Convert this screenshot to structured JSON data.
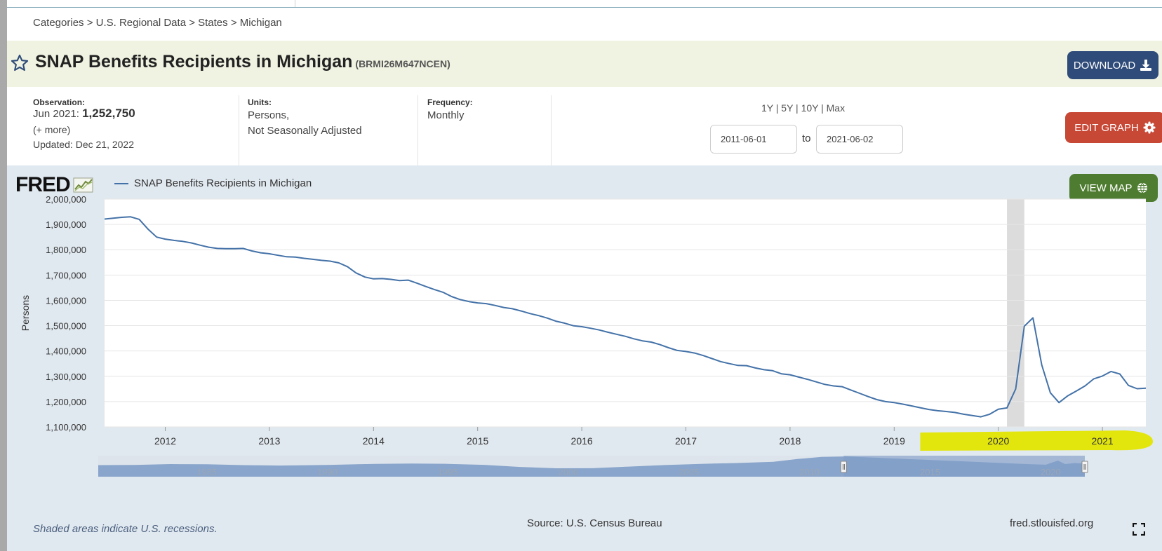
{
  "breadcrumb": "Categories > U.S. Regional Data > States > Michigan",
  "title": "SNAP Benefits Recipients in Michigan",
  "series_id": "(BRMI26M647NCEN)",
  "download_label": "DOWNLOAD",
  "observation": {
    "label": "Observation:",
    "date": "Jun 2021:",
    "value": "1,252,750",
    "more": "(+ more)",
    "updated": "Updated: Dec 21, 2022"
  },
  "units": {
    "label": "Units:",
    "line1": "Persons,",
    "line2": "Not Seasonally Adjusted"
  },
  "frequency": {
    "label": "Frequency:",
    "value": "Monthly"
  },
  "range_links": "1Y | 5Y | 10Y | Max",
  "date_from": "2011-06-01",
  "date_to": "2021-06-02",
  "to_label": "to",
  "edit_graph_label": "EDIT GRAPH",
  "view_map_label": "VIEW MAP",
  "logo_text": "FRED",
  "recession_note": "Shaded areas indicate U.S. recessions.",
  "source": "Source: U.S. Census Bureau",
  "url": "fred.stlouisfed.org",
  "colors": {
    "line": "#4472a8",
    "recession": "#dcdcdc",
    "highlight": "#e3e600",
    "download": "#2e4b79",
    "edit": "#c84836",
    "viewmap": "#4e7d31"
  },
  "icons": [
    "star-icon",
    "download-icon",
    "gear-icon",
    "fred-chart-icon",
    "globe-icon",
    "fullscreen-icon"
  ],
  "chart_data": {
    "type": "line",
    "ylabel": "Persons",
    "xlabel": "",
    "xlim": [
      2011.417,
      2021.417
    ],
    "ylim": [
      1100000,
      2000000
    ],
    "y_ticks": [
      1100000,
      1200000,
      1300000,
      1400000,
      1500000,
      1600000,
      1700000,
      1800000,
      1900000,
      2000000
    ],
    "y_tick_labels": [
      "1,100,000",
      "1,200,000",
      "1,300,000",
      "1,400,000",
      "1,500,000",
      "1,600,000",
      "1,700,000",
      "1,800,000",
      "1,900,000",
      "2,000,000"
    ],
    "x_ticks": [
      2012,
      2013,
      2014,
      2015,
      2016,
      2017,
      2018,
      2019,
      2020,
      2021
    ],
    "x_tick_labels": [
      "2012",
      "2013",
      "2014",
      "2015",
      "2016",
      "2017",
      "2018",
      "2019",
      "2020",
      "2021"
    ],
    "recession": [
      2020.083,
      2020.25
    ],
    "series": [
      {
        "name": "SNAP Benefits Recipients in Michigan",
        "points": [
          [
            2011.417,
            1921000
          ],
          [
            2011.583,
            1928000
          ],
          [
            2011.667,
            1930000
          ],
          [
            2011.75,
            1920000
          ],
          [
            2011.833,
            1882000
          ],
          [
            2011.917,
            1850000
          ],
          [
            2012.0,
            1842000
          ],
          [
            2012.083,
            1837000
          ],
          [
            2012.167,
            1833000
          ],
          [
            2012.25,
            1827000
          ],
          [
            2012.333,
            1818000
          ],
          [
            2012.417,
            1810000
          ],
          [
            2012.5,
            1805000
          ],
          [
            2012.583,
            1804000
          ],
          [
            2012.667,
            1804000
          ],
          [
            2012.75,
            1805000
          ],
          [
            2012.833,
            1795000
          ],
          [
            2012.917,
            1788000
          ],
          [
            2013.0,
            1784000
          ],
          [
            2013.083,
            1778000
          ],
          [
            2013.167,
            1772000
          ],
          [
            2013.25,
            1771000
          ],
          [
            2013.333,
            1766000
          ],
          [
            2013.417,
            1762000
          ],
          [
            2013.5,
            1758000
          ],
          [
            2013.583,
            1755000
          ],
          [
            2013.667,
            1748000
          ],
          [
            2013.75,
            1733000
          ],
          [
            2013.833,
            1708000
          ],
          [
            2013.917,
            1692000
          ],
          [
            2014.0,
            1685000
          ],
          [
            2014.083,
            1686000
          ],
          [
            2014.167,
            1683000
          ],
          [
            2014.25,
            1678000
          ],
          [
            2014.333,
            1680000
          ],
          [
            2014.417,
            1668000
          ],
          [
            2014.5,
            1655000
          ],
          [
            2014.583,
            1643000
          ],
          [
            2014.667,
            1632000
          ],
          [
            2014.75,
            1615000
          ],
          [
            2014.833,
            1603000
          ],
          [
            2014.917,
            1595000
          ],
          [
            2015.0,
            1590000
          ],
          [
            2015.083,
            1587000
          ],
          [
            2015.167,
            1580000
          ],
          [
            2015.25,
            1572000
          ],
          [
            2015.333,
            1567000
          ],
          [
            2015.417,
            1558000
          ],
          [
            2015.5,
            1548000
          ],
          [
            2015.583,
            1540000
          ],
          [
            2015.667,
            1530000
          ],
          [
            2015.75,
            1518000
          ],
          [
            2015.833,
            1510000
          ],
          [
            2015.917,
            1500000
          ],
          [
            2016.0,
            1496000
          ],
          [
            2016.083,
            1490000
          ],
          [
            2016.167,
            1483000
          ],
          [
            2016.25,
            1474000
          ],
          [
            2016.333,
            1466000
          ],
          [
            2016.417,
            1458000
          ],
          [
            2016.5,
            1448000
          ],
          [
            2016.583,
            1440000
          ],
          [
            2016.667,
            1435000
          ],
          [
            2016.75,
            1425000
          ],
          [
            2016.833,
            1413000
          ],
          [
            2016.917,
            1402000
          ],
          [
            2017.0,
            1398000
          ],
          [
            2017.083,
            1392000
          ],
          [
            2017.167,
            1382000
          ],
          [
            2017.25,
            1370000
          ],
          [
            2017.333,
            1358000
          ],
          [
            2017.417,
            1350000
          ],
          [
            2017.5,
            1343000
          ],
          [
            2017.583,
            1342000
          ],
          [
            2017.667,
            1333000
          ],
          [
            2017.75,
            1326000
          ],
          [
            2017.833,
            1322000
          ],
          [
            2017.917,
            1310000
          ],
          [
            2018.0,
            1306000
          ],
          [
            2018.083,
            1297000
          ],
          [
            2018.167,
            1288000
          ],
          [
            2018.25,
            1278000
          ],
          [
            2018.333,
            1268000
          ],
          [
            2018.417,
            1262000
          ],
          [
            2018.5,
            1259000
          ],
          [
            2018.583,
            1246000
          ],
          [
            2018.667,
            1233000
          ],
          [
            2018.75,
            1220000
          ],
          [
            2018.833,
            1208000
          ],
          [
            2018.917,
            1200000
          ],
          [
            2019.0,
            1196000
          ],
          [
            2019.083,
            1190000
          ],
          [
            2019.167,
            1183000
          ],
          [
            2019.25,
            1176000
          ],
          [
            2019.333,
            1169000
          ],
          [
            2019.417,
            1164000
          ],
          [
            2019.5,
            1161000
          ],
          [
            2019.583,
            1157000
          ],
          [
            2019.667,
            1150000
          ],
          [
            2019.75,
            1145000
          ],
          [
            2019.833,
            1140000
          ],
          [
            2019.917,
            1150000
          ],
          [
            2020.0,
            1170000
          ],
          [
            2020.083,
            1175000
          ],
          [
            2020.167,
            1250000
          ],
          [
            2020.25,
            1498000
          ],
          [
            2020.333,
            1531000
          ],
          [
            2020.417,
            1345000
          ],
          [
            2020.5,
            1235000
          ],
          [
            2020.583,
            1196000
          ],
          [
            2020.667,
            1223000
          ],
          [
            2020.75,
            1242000
          ],
          [
            2020.833,
            1262000
          ],
          [
            2020.917,
            1290000
          ],
          [
            2021.0,
            1301000
          ],
          [
            2021.083,
            1319000
          ],
          [
            2021.167,
            1309000
          ],
          [
            2021.25,
            1264000
          ],
          [
            2021.333,
            1251000
          ],
          [
            2021.417,
            1252750
          ]
        ]
      }
    ],
    "navigator": {
      "x_ticks": [
        1985,
        1990,
        1995,
        2000,
        2005,
        2010,
        2015,
        2020
      ],
      "x_tick_labels": [
        "1985",
        "1990",
        "1995",
        "2000",
        "2005",
        "2010",
        "2015",
        "2020"
      ],
      "xlim": [
        1980.5,
        2021.417
      ],
      "ylim": [
        0,
        2000000
      ],
      "selection": [
        2011.417,
        2021.417
      ],
      "series": [
        [
          1980.5,
          1100000
        ],
        [
          1982,
          1120000
        ],
        [
          1983.5,
          1200000
        ],
        [
          1985,
          1180000
        ],
        [
          1986.5,
          1100000
        ],
        [
          1988,
          1060000
        ],
        [
          1990,
          1120000
        ],
        [
          1992,
          1220000
        ],
        [
          1993.5,
          1250000
        ],
        [
          1995,
          1220000
        ],
        [
          1996.5,
          1130000
        ],
        [
          1998,
          930000
        ],
        [
          1999.5,
          800000
        ],
        [
          2001,
          810000
        ],
        [
          2002.5,
          960000
        ],
        [
          2004,
          1110000
        ],
        [
          2005.5,
          1220000
        ],
        [
          2007,
          1300000
        ],
        [
          2008.5,
          1420000
        ],
        [
          2009.5,
          1680000
        ],
        [
          2010.5,
          1880000
        ],
        [
          2011.5,
          1930000
        ],
        [
          2013,
          1780000
        ],
        [
          2015,
          1590000
        ],
        [
          2017,
          1400000
        ],
        [
          2019,
          1200000
        ],
        [
          2019.8,
          1140000
        ],
        [
          2020.3,
          1531000
        ],
        [
          2020.6,
          1200000
        ],
        [
          2021,
          1300000
        ],
        [
          2021.417,
          1252750
        ]
      ]
    }
  }
}
